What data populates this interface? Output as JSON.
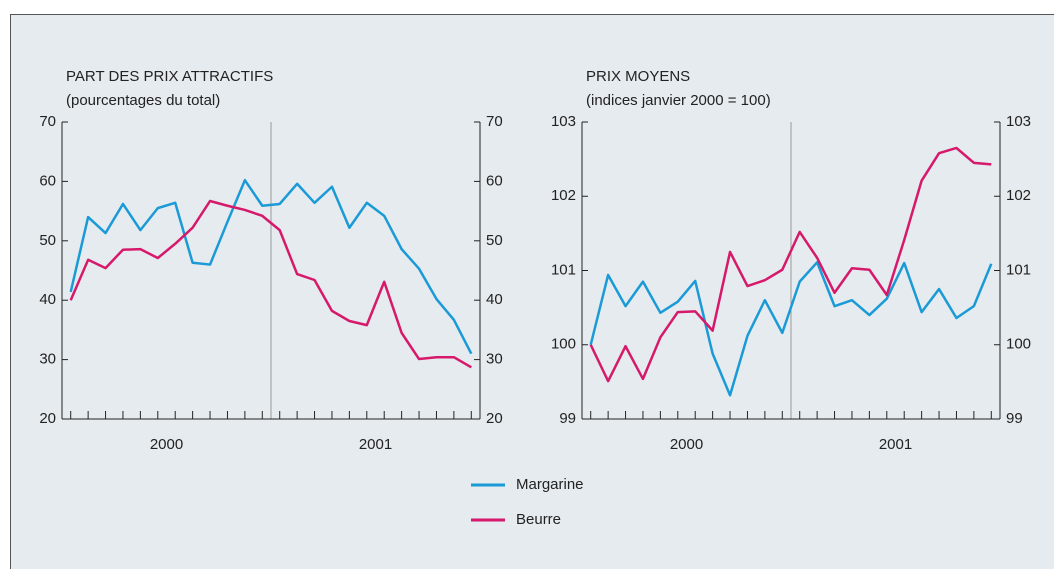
{
  "chart_data": [
    {
      "type": "line",
      "title": "PART DES PRIX ATTRACTIFS",
      "subtitle": "(pourcentages du total)",
      "categories": [
        null,
        null,
        null,
        null,
        null,
        null,
        null,
        null,
        null,
        null,
        null,
        null,
        null,
        null,
        null,
        null,
        null,
        null,
        null,
        null,
        null,
        null,
        null,
        null
      ],
      "year_labels": [
        "2000",
        "2001"
      ],
      "ylim": [
        20,
        70
      ],
      "yticks": [
        20,
        30,
        40,
        50,
        60,
        70
      ],
      "series": [
        {
          "name": "Margarine",
          "color": "#1a9ad6",
          "values": [
            41.4,
            54.0,
            51.3,
            56.2,
            51.8,
            55.5,
            56.4,
            46.3,
            46.0,
            53.2,
            60.2,
            55.9,
            56.2,
            59.6,
            56.4,
            59.1,
            52.2,
            56.4,
            54.2,
            48.6,
            45.3,
            40.2,
            36.7,
            31.0
          ]
        },
        {
          "name": "Beurre",
          "color": "#d6196b",
          "values": [
            40.0,
            46.8,
            45.4,
            48.5,
            48.6,
            47.1,
            49.5,
            52.2,
            56.7,
            55.9,
            55.2,
            54.2,
            51.8,
            44.4,
            43.4,
            38.2,
            36.5,
            35.8,
            43.1,
            34.5,
            30.1,
            30.4,
            30.4,
            28.7
          ]
        }
      ]
    },
    {
      "type": "line",
      "title": "PRIX MOYENS",
      "subtitle": "(indices janvier 2000 = 100)",
      "categories": [
        null,
        null,
        null,
        null,
        null,
        null,
        null,
        null,
        null,
        null,
        null,
        null,
        null,
        null,
        null,
        null,
        null,
        null,
        null,
        null,
        null,
        null,
        null,
        null
      ],
      "year_labels": [
        "2000",
        "2001"
      ],
      "ylim": [
        99,
        103
      ],
      "yticks": [
        99,
        100,
        101,
        102,
        103
      ],
      "series": [
        {
          "name": "Margarine",
          "color": "#1a9ad6",
          "values": [
            100,
            100.94,
            100.52,
            100.85,
            100.43,
            100.58,
            100.86,
            99.88,
            99.32,
            100.12,
            100.6,
            100.16,
            100.85,
            101.11,
            100.52,
            100.6,
            100.4,
            100.62,
            101.1,
            100.44,
            100.75,
            100.36,
            100.52,
            101.09
          ]
        },
        {
          "name": "Beurre",
          "color": "#d6196b",
          "values": [
            100,
            99.51,
            99.98,
            99.54,
            100.1,
            100.44,
            100.45,
            100.19,
            101.25,
            100.79,
            100.87,
            101.01,
            101.52,
            101.17,
            100.7,
            101.03,
            101.01,
            100.67,
            101.41,
            102.21,
            102.58,
            102.65,
            102.45,
            102.43
          ]
        }
      ]
    }
  ]
}
